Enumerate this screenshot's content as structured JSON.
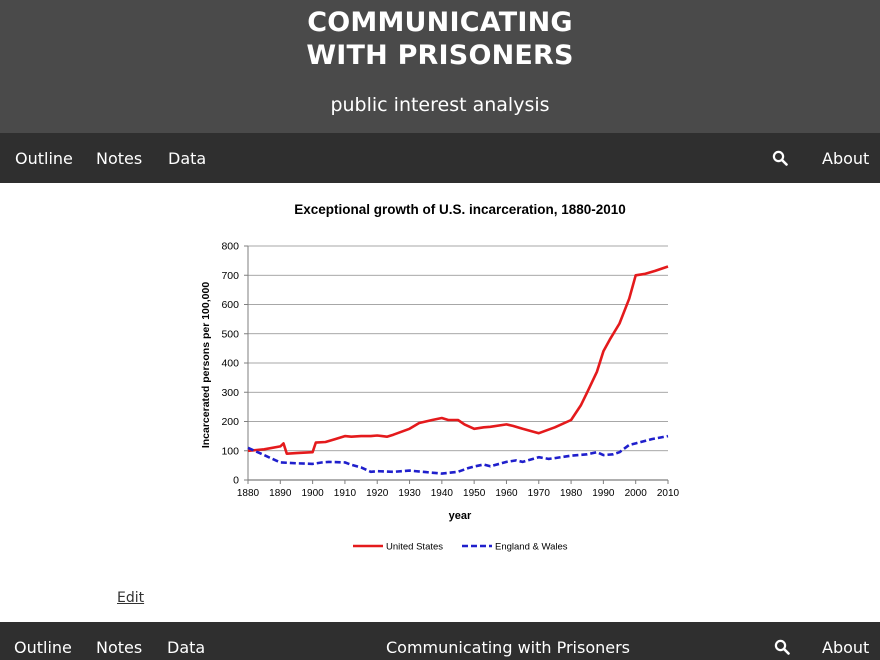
{
  "header": {
    "title_line1": "COMMUNICATING",
    "title_line2": "WITH PRISONERS",
    "subtitle": "public interest analysis"
  },
  "nav": {
    "outline": "Outline",
    "notes": "Notes",
    "data": "Data",
    "search_icon": "search-icon",
    "about": "About"
  },
  "edit_link": "Edit",
  "footer": {
    "outline": "Outline",
    "notes": "Notes",
    "data": "Data",
    "title": "Communicating with Prisoners",
    "search_icon": "search-icon",
    "about": "About"
  },
  "colors": {
    "header_bg": "#4a4a4a",
    "nav_bg": "#2f2f2f",
    "us_line": "#e41a1c",
    "ew_line": "#1f1fcc"
  },
  "chart_data": {
    "type": "line",
    "title": "Exceptional growth of U.S. incarceration, 1880-2010",
    "xlabel": "year",
    "ylabel": "Incarcerated persons per 100,000",
    "xlim": [
      1880,
      2010
    ],
    "ylim": [
      0,
      800
    ],
    "x_ticks": [
      "1880",
      "1890",
      "1900",
      "1910",
      "1920",
      "1930",
      "1940",
      "1950",
      "1960",
      "1970",
      "1980",
      "1990",
      "2000",
      "2010"
    ],
    "y_ticks": [
      "0",
      "100",
      "200",
      "300",
      "400",
      "500",
      "600",
      "700",
      "800"
    ],
    "grid": true,
    "legend_position": "bottom",
    "series": [
      {
        "name": "United States",
        "style": "solid",
        "color": "#e41a1c",
        "x": [
          1880,
          1885,
          1890,
          1891,
          1892,
          1895,
          1900,
          1901,
          1904,
          1907,
          1910,
          1912,
          1915,
          1918,
          1920,
          1923,
          1925,
          1930,
          1933,
          1935,
          1937,
          1940,
          1942,
          1945,
          1947,
          1950,
          1953,
          1955,
          1960,
          1962,
          1965,
          1970,
          1975,
          1980,
          1983,
          1985,
          1988,
          1990,
          1992,
          1995,
          1998,
          2000,
          2003,
          2006,
          2010
        ],
        "y": [
          100,
          105,
          115,
          125,
          90,
          92,
          95,
          128,
          130,
          140,
          150,
          148,
          150,
          150,
          152,
          148,
          155,
          175,
          195,
          200,
          205,
          212,
          205,
          205,
          190,
          175,
          180,
          182,
          190,
          185,
          175,
          160,
          180,
          205,
          255,
          300,
          370,
          440,
          480,
          535,
          620,
          700,
          705,
          715,
          730
        ]
      },
      {
        "name": "England & Wales",
        "style": "dashed",
        "color": "#1f1fcc",
        "x": [
          1880,
          1883,
          1885,
          1887,
          1890,
          1895,
          1900,
          1903,
          1905,
          1910,
          1912,
          1915,
          1918,
          1920,
          1925,
          1930,
          1935,
          1940,
          1945,
          1948,
          1950,
          1953,
          1955,
          1960,
          1963,
          1965,
          1970,
          1973,
          1975,
          1980,
          1985,
          1988,
          1990,
          1993,
          1995,
          1998,
          2000,
          2005,
          2010
        ],
        "y": [
          110,
          95,
          85,
          75,
          60,
          57,
          55,
          60,
          62,
          60,
          52,
          43,
          28,
          30,
          28,
          32,
          27,
          22,
          28,
          40,
          46,
          53,
          47,
          62,
          67,
          62,
          78,
          72,
          75,
          83,
          88,
          95,
          85,
          88,
          95,
          120,
          125,
          140,
          150
        ]
      }
    ]
  }
}
